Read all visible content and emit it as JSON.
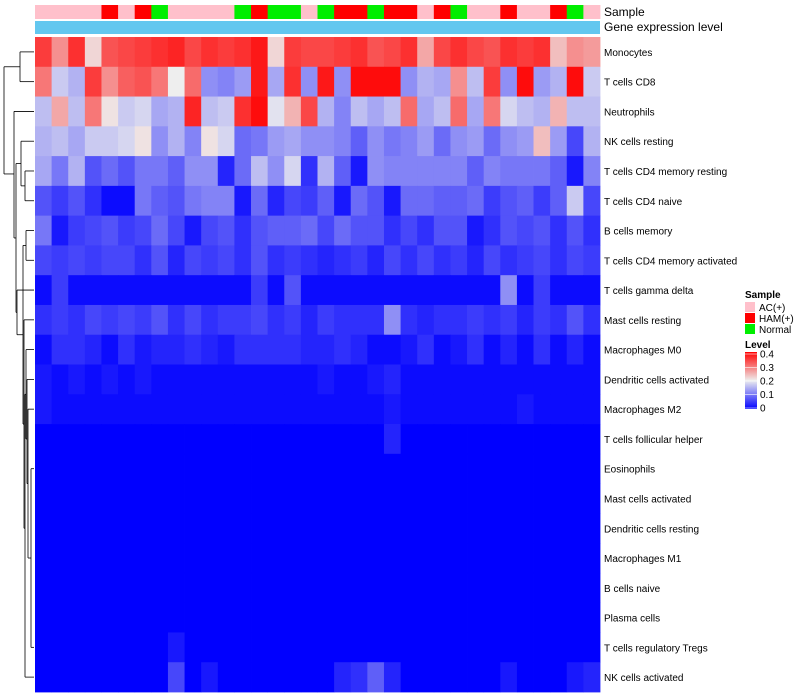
{
  "chart_data": {
    "type": "heatmap",
    "title": "",
    "annotation_labels": {
      "sample_track": "Sample",
      "expression_track": "Gene expression level"
    },
    "rows": [
      "Monocytes",
      "T cells CD8",
      "Neutrophils",
      "NK cells resting",
      "T cells CD4 memory resting",
      "T cells CD4 naive",
      "B cells memory",
      "T cells CD4 memory activated",
      "T cells gamma delta",
      "Mast cells resting",
      "Macrophages M0",
      "Dendritic cells activated",
      "Macrophages M2",
      "T cells follicular helper",
      "Eosinophils",
      "Mast cells activated",
      "Dendritic cells resting",
      "Macrophages M1",
      "B cells naive",
      "Plasma cells",
      "T cells regulatory  Tregs",
      "NK cells activated"
    ],
    "sample_groups": [
      "AC",
      "AC",
      "AC",
      "AC",
      "HAM",
      "AC",
      "HAM",
      "Normal",
      "AC",
      "AC",
      "AC",
      "AC",
      "Normal",
      "HAM",
      "Normal",
      "Normal",
      "AC",
      "Normal",
      "HAM",
      "HAM",
      "Normal",
      "HAM",
      "HAM",
      "AC",
      "HAM",
      "Normal",
      "AC",
      "AC",
      "HAM",
      "AC",
      "AC",
      "HAM",
      "Normal",
      "AC"
    ],
    "values": [
      [
        0.35,
        0.28,
        0.36,
        0.22,
        0.33,
        0.34,
        0.35,
        0.36,
        0.37,
        0.34,
        0.36,
        0.35,
        0.36,
        0.38,
        0.22,
        0.35,
        0.34,
        0.34,
        0.35,
        0.36,
        0.33,
        0.34,
        0.36,
        0.26,
        0.34,
        0.36,
        0.34,
        0.33,
        0.36,
        0.35,
        0.36,
        0.24,
        0.28,
        0.27
      ],
      [
        0.3,
        0.17,
        0.15,
        0.35,
        0.28,
        0.32,
        0.33,
        0.3,
        0.2,
        0.31,
        0.12,
        0.11,
        0.13,
        0.38,
        0.14,
        0.36,
        0.12,
        0.38,
        0.12,
        0.39,
        0.39,
        0.39,
        0.12,
        0.15,
        0.14,
        0.28,
        0.16,
        0.35,
        0.12,
        0.39,
        0.13,
        0.15,
        0.39,
        0.17
      ],
      [
        0.16,
        0.26,
        0.16,
        0.3,
        0.21,
        0.17,
        0.18,
        0.14,
        0.15,
        0.37,
        0.16,
        0.17,
        0.36,
        0.39,
        0.19,
        0.25,
        0.34,
        0.15,
        0.11,
        0.16,
        0.14,
        0.16,
        0.31,
        0.14,
        0.16,
        0.31,
        0.14,
        0.3,
        0.18,
        0.16,
        0.15,
        0.25,
        0.16,
        0.16
      ],
      [
        0.15,
        0.16,
        0.14,
        0.17,
        0.17,
        0.18,
        0.21,
        0.12,
        0.15,
        0.11,
        0.21,
        0.18,
        0.09,
        0.1,
        0.13,
        0.14,
        0.12,
        0.12,
        0.11,
        0.08,
        0.12,
        0.1,
        0.11,
        0.13,
        0.09,
        0.12,
        0.13,
        0.09,
        0.12,
        0.13,
        0.24,
        0.13,
        0.06,
        0.15
      ],
      [
        0.14,
        0.1,
        0.15,
        0.07,
        0.09,
        0.07,
        0.1,
        0.1,
        0.08,
        0.12,
        0.12,
        0.03,
        0.09,
        0.16,
        0.12,
        0.18,
        0.04,
        0.15,
        0.08,
        0.02,
        0.12,
        0.11,
        0.11,
        0.11,
        0.11,
        0.11,
        0.08,
        0.11,
        0.1,
        0.1,
        0.1,
        0.08,
        0.02,
        0.11
      ],
      [
        0.07,
        0.05,
        0.07,
        0.04,
        0.01,
        0.01,
        0.1,
        0.08,
        0.07,
        0.1,
        0.11,
        0.11,
        0.02,
        0.09,
        0.03,
        0.06,
        0.05,
        0.08,
        0.02,
        0.09,
        0.07,
        0.02,
        0.09,
        0.09,
        0.08,
        0.08,
        0.09,
        0.05,
        0.07,
        0.08,
        0.05,
        0.08,
        0.17,
        0.06
      ],
      [
        0.1,
        0.02,
        0.05,
        0.06,
        0.07,
        0.05,
        0.06,
        0.09,
        0.06,
        0.02,
        0.06,
        0.07,
        0.04,
        0.07,
        0.08,
        0.08,
        0.09,
        0.06,
        0.09,
        0.07,
        0.07,
        0.04,
        0.06,
        0.04,
        0.07,
        0.07,
        0.02,
        0.04,
        0.07,
        0.06,
        0.07,
        0.04,
        0.07,
        0.04
      ],
      [
        0.06,
        0.05,
        0.06,
        0.05,
        0.06,
        0.06,
        0.04,
        0.07,
        0.03,
        0.06,
        0.05,
        0.06,
        0.04,
        0.07,
        0.04,
        0.05,
        0.04,
        0.03,
        0.04,
        0.05,
        0.03,
        0.06,
        0.04,
        0.06,
        0.04,
        0.05,
        0.03,
        0.06,
        0.04,
        0.05,
        0.06,
        0.04,
        0.06,
        0.05
      ],
      [
        0.01,
        0.05,
        0.01,
        0.01,
        0.01,
        0.01,
        0.01,
        0.01,
        0.01,
        0.01,
        0.01,
        0.01,
        0.01,
        0.05,
        0.01,
        0.07,
        0.01,
        0.01,
        0.01,
        0.01,
        0.01,
        0.01,
        0.01,
        0.01,
        0.01,
        0.01,
        0.01,
        0.01,
        0.12,
        0.01,
        0.05,
        0.01,
        0.01,
        0.01
      ],
      [
        0.04,
        0.05,
        0.04,
        0.06,
        0.05,
        0.06,
        0.05,
        0.07,
        0.04,
        0.06,
        0.04,
        0.05,
        0.05,
        0.06,
        0.04,
        0.05,
        0.03,
        0.05,
        0.04,
        0.04,
        0.04,
        0.12,
        0.04,
        0.03,
        0.04,
        0.04,
        0.05,
        0.04,
        0.05,
        0.03,
        0.05,
        0.04,
        0.07,
        0.04
      ],
      [
        0.01,
        0.04,
        0.04,
        0.03,
        0.01,
        0.04,
        0.02,
        0.03,
        0.03,
        0.04,
        0.03,
        0.02,
        0.04,
        0.04,
        0.04,
        0.04,
        0.03,
        0.03,
        0.04,
        0.03,
        0.01,
        0.01,
        0.02,
        0.04,
        0.01,
        0.02,
        0.04,
        0.01,
        0.03,
        0.01,
        0.04,
        0.01,
        0.03,
        0.01
      ],
      [
        0.02,
        0.01,
        0.02,
        0.01,
        0.02,
        0.01,
        0.02,
        0.01,
        0.01,
        0.01,
        0.01,
        0.01,
        0.01,
        0.01,
        0.01,
        0.01,
        0.01,
        0.02,
        0.01,
        0.01,
        0.02,
        0.03,
        0.01,
        0.01,
        0.01,
        0.01,
        0.01,
        0.01,
        0.01,
        0.01,
        0.01,
        0.01,
        0.01,
        0.01
      ],
      [
        0.02,
        0.01,
        0.01,
        0.01,
        0.01,
        0.01,
        0.01,
        0.01,
        0.01,
        0.01,
        0.01,
        0.01,
        0.01,
        0.01,
        0.01,
        0.01,
        0.01,
        0.01,
        0.01,
        0.01,
        0.01,
        0.02,
        0.01,
        0.01,
        0.01,
        0.01,
        0.01,
        0.01,
        0.01,
        0.02,
        0.01,
        0.01,
        0.01,
        0.01
      ],
      [
        0,
        0,
        0,
        0,
        0,
        0,
        0,
        0,
        0,
        0,
        0,
        0,
        0,
        0,
        0,
        0,
        0,
        0,
        0,
        0,
        0,
        0.03,
        0,
        0,
        0,
        0,
        0,
        0,
        0,
        0,
        0,
        0,
        0,
        0
      ],
      [
        0,
        0,
        0,
        0,
        0,
        0,
        0,
        0,
        0,
        0,
        0,
        0,
        0,
        0,
        0,
        0,
        0,
        0,
        0,
        0,
        0,
        0,
        0,
        0,
        0,
        0,
        0,
        0,
        0,
        0,
        0,
        0,
        0,
        0
      ],
      [
        0,
        0,
        0,
        0,
        0,
        0,
        0,
        0,
        0,
        0,
        0,
        0,
        0,
        0,
        0,
        0,
        0,
        0,
        0,
        0,
        0,
        0,
        0,
        0,
        0,
        0,
        0,
        0,
        0,
        0,
        0,
        0,
        0,
        0
      ],
      [
        0,
        0,
        0,
        0,
        0,
        0,
        0,
        0,
        0,
        0,
        0,
        0,
        0,
        0,
        0,
        0,
        0,
        0,
        0,
        0,
        0,
        0,
        0,
        0,
        0,
        0,
        0,
        0,
        0,
        0,
        0,
        0,
        0,
        0
      ],
      [
        0,
        0,
        0,
        0,
        0,
        0,
        0,
        0,
        0,
        0,
        0,
        0,
        0,
        0,
        0,
        0,
        0,
        0,
        0,
        0,
        0,
        0,
        0,
        0,
        0,
        0,
        0,
        0,
        0,
        0,
        0,
        0,
        0,
        0
      ],
      [
        0,
        0,
        0,
        0,
        0,
        0,
        0,
        0,
        0,
        0,
        0,
        0,
        0,
        0,
        0,
        0,
        0,
        0,
        0,
        0,
        0,
        0,
        0,
        0,
        0,
        0,
        0,
        0,
        0,
        0,
        0,
        0,
        0,
        0
      ],
      [
        0,
        0,
        0,
        0,
        0,
        0,
        0,
        0,
        0,
        0,
        0,
        0,
        0,
        0,
        0,
        0,
        0,
        0,
        0,
        0,
        0,
        0,
        0,
        0,
        0,
        0,
        0,
        0,
        0,
        0,
        0,
        0,
        0,
        0
      ],
      [
        0,
        0,
        0,
        0,
        0,
        0,
        0,
        0,
        0.02,
        0,
        0,
        0,
        0,
        0,
        0,
        0,
        0,
        0,
        0,
        0,
        0,
        0,
        0,
        0,
        0,
        0,
        0,
        0,
        0,
        0,
        0,
        0,
        0,
        0
      ],
      [
        0,
        0,
        0,
        0,
        0,
        0,
        0,
        0,
        0.06,
        0,
        0.02,
        0,
        0,
        0,
        0,
        0,
        0,
        0,
        0.03,
        0.04,
        0.08,
        0.03,
        0,
        0,
        0,
        0,
        0,
        0,
        0.02,
        0,
        0,
        0,
        0.02,
        0.03
      ]
    ],
    "legend_sample": {
      "title": "Sample",
      "entries": [
        {
          "label": "AC(+)",
          "color": "#ffc0cb"
        },
        {
          "label": "HAM(+)",
          "color": "#ff0000"
        },
        {
          "label": "Normal",
          "color": "#00ee00"
        }
      ]
    },
    "legend_level": {
      "title": "Level",
      "ticks": [
        "0.4",
        "0.3",
        "0.2",
        "0.1",
        "0"
      ],
      "range": [
        0,
        0.4
      ]
    },
    "colors": {
      "low": "#0000ff",
      "mid": "#eeeeee",
      "high": "#ff0000",
      "expression_track": "#63c7ef",
      "dendrogram": "#000000"
    }
  }
}
